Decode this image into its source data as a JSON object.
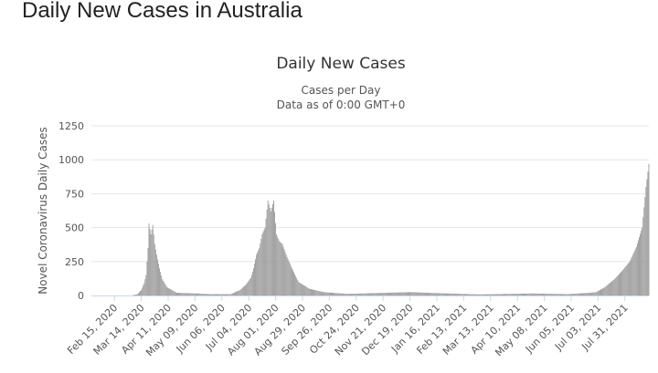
{
  "page": {
    "title": "Daily New Cases in Australia"
  },
  "chart_data": {
    "type": "bar",
    "title": "Daily New Cases",
    "subtitle_lines": [
      "Cases per Day",
      "Data as of 0:00 GMT+0"
    ],
    "ylabel": "Novel Coronavirus Daily Cases",
    "xlabel": "",
    "ylim": [
      0,
      1250
    ],
    "yticks": [
      0,
      250,
      500,
      750,
      1000,
      1250
    ],
    "grid": true,
    "legend": "none",
    "color": "#999999",
    "x_start": "2020-01-22",
    "x_end": "2021-08-25",
    "xtick_labels": [
      "Feb 15, 2020",
      "Mar 14, 2020",
      "Apr 11, 2020",
      "May 09, 2020",
      "Jun 06, 2020",
      "Jul 04, 2020",
      "Aug 01, 2020",
      "Aug 29, 2020",
      "Sep 26, 2020",
      "Oct 24, 2020",
      "Nov 21, 2020",
      "Dec 19, 2020",
      "Jan 16, 2021",
      "Feb 13, 2021",
      "Mar 13, 2021",
      "Apr 10, 2021",
      "May 08, 2021",
      "Jun 05, 2021",
      "Jul 03, 2021",
      "Jul 31, 2021"
    ],
    "series": [
      {
        "dates": [
          "2020-03-05",
          "2020-03-10",
          "2020-03-14",
          "2020-03-17",
          "2020-03-19",
          "2020-03-21",
          "2020-03-22",
          "2020-03-24",
          "2020-03-26",
          "2020-03-28",
          "2020-03-30",
          "2020-04-02",
          "2020-04-05",
          "2020-04-10",
          "2020-04-20",
          "2020-05-10",
          "2020-05-25",
          "2020-06-15",
          "2020-06-25",
          "2020-07-01",
          "2020-07-06",
          "2020-07-09",
          "2020-07-12",
          "2020-07-15",
          "2020-07-18",
          "2020-07-21",
          "2020-07-24",
          "2020-07-27",
          "2020-07-30",
          "2020-08-02",
          "2020-08-05",
          "2020-08-08",
          "2020-08-12",
          "2020-08-18",
          "2020-08-25",
          "2020-09-05",
          "2020-09-20",
          "2020-10-15",
          "2020-12-20",
          "2021-01-05",
          "2021-03-01",
          "2021-04-25",
          "2021-06-01",
          "2021-06-25",
          "2021-07-01",
          "2021-07-10",
          "2021-07-20",
          "2021-07-28",
          "2021-08-05",
          "2021-08-12",
          "2021-08-18",
          "2021-08-22",
          "2021-08-25"
        ],
        "values": [
          2,
          10,
          40,
          90,
          150,
          350,
          530,
          450,
          520,
          380,
          300,
          200,
          120,
          60,
          20,
          15,
          10,
          10,
          40,
          80,
          130,
          200,
          300,
          350,
          450,
          500,
          700,
          620,
          700,
          450,
          400,
          380,
          300,
          200,
          100,
          50,
          25,
          12,
          25,
          20,
          8,
          15,
          10,
          20,
          25,
          60,
          120,
          180,
          250,
          360,
          500,
          800,
          970
        ]
      }
    ]
  }
}
